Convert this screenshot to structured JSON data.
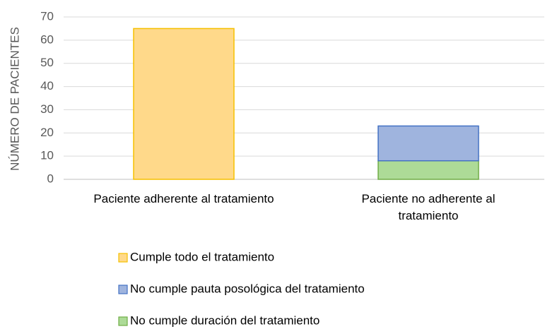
{
  "chart_data": {
    "type": "stacked_bar",
    "y_label": "NÚMERO DE PACIENTES",
    "categories": [
      "Paciente adherente al tratamiento",
      "Paciente no adherente al tratamiento"
    ],
    "series": [
      {
        "name": "Cumple todo el tratamiento",
        "color": "#ffd98a",
        "edge": "#f5c000",
        "values": [
          65,
          null
        ]
      },
      {
        "name": "No cumple pauta posológica del tratamiento",
        "color": "#9fb4de",
        "edge": "#4472c4",
        "values": [
          null,
          15
        ]
      },
      {
        "name": "No cumple duración del tratamiento",
        "color": "#addb97",
        "edge": "#70ad47",
        "values": [
          null,
          8
        ]
      }
    ],
    "ylim": [
      0,
      70
    ],
    "yticks": [
      0,
      10,
      20,
      30,
      40,
      50,
      60,
      70
    ],
    "grid": true,
    "legend": "bottom"
  }
}
